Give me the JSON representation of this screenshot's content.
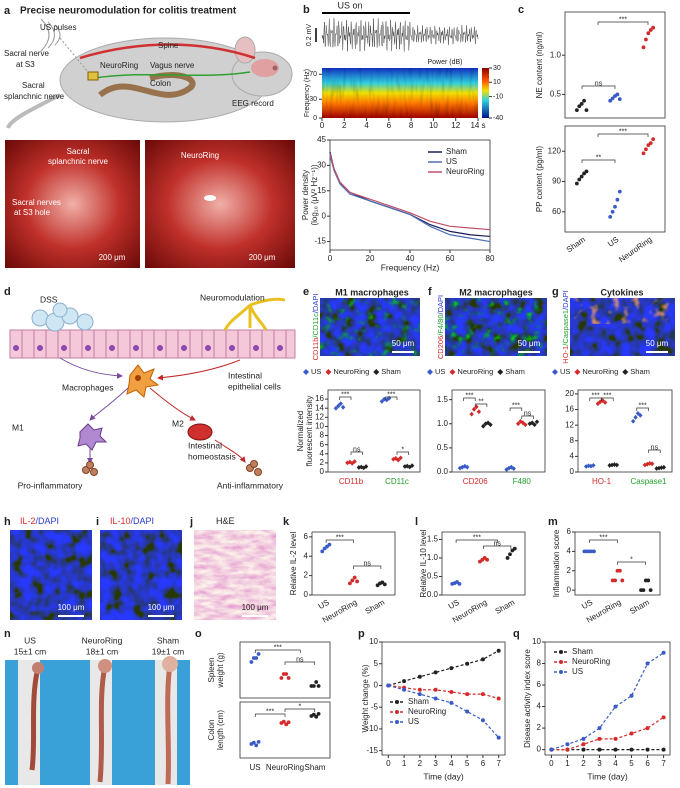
{
  "figure": {
    "panel_labels": [
      "a",
      "b",
      "c",
      "d",
      "e",
      "f",
      "g",
      "h",
      "i",
      "j",
      "k",
      "l",
      "m",
      "n",
      "o",
      "p",
      "q"
    ],
    "a": {
      "title": "Precise neuromodulation for colitis treatment",
      "labels": [
        "US pulses",
        "Spine",
        "EEG record",
        "Sacral nerve",
        "at S3",
        "NeuroRing",
        "Vagus nerve",
        "Sacral",
        "splanchnic nerve",
        "Colon"
      ],
      "photo_labels": [
        "Sacral",
        "splanchnic nerve",
        "Sacral nerves",
        "at S3 hole",
        "200 μm",
        "NeuroRing",
        "200 μm"
      ]
    },
    "b": {
      "stim_label": "US on",
      "amplitude_scale": "0.2 mV",
      "colorbar_title": "Power (dB)",
      "spectrogram": {
        "ylabel": "Frequency (Hz)",
        "xlim": [
          0,
          14
        ],
        "ylim": [
          0,
          80
        ],
        "xticks": [
          0,
          2,
          4,
          6,
          8,
          10,
          12,
          {
            "value": 14,
            "label": "14 s"
          }
        ],
        "yticks": [
          0,
          30,
          70
        ],
        "colorbar_lim": [
          -40,
          30
        ],
        "colorbar_ticks": [
          30,
          10,
          -10,
          -40
        ]
      }
    },
    "d": {
      "labels": [
        "DSS",
        "Neuromodulation",
        "Macrophages",
        "Intestinal",
        "epithelial cells",
        "M1",
        "M2",
        "Intestinal",
        "homeostasis",
        "Pro-inflammatory",
        "Anti-inflammatory"
      ]
    },
    "e": {
      "title": "M1 macrophages",
      "stain": [
        "CD11b",
        "/CD11c",
        "/DAPI"
      ],
      "stain_colors": [
        "#d42a2a",
        "#22a02a",
        "#2a3ad0"
      ],
      "scale_bar": "50 μm"
    },
    "f": {
      "title": "M2 macrophages",
      "stain": [
        "CD206",
        "/F4/80",
        "/DAPI"
      ],
      "stain_colors": [
        "#d42a2a",
        "#22a02a",
        "#2a3ad0"
      ],
      "scale_bar": "50 μm"
    },
    "g": {
      "title": "Cytokines",
      "stain": [
        "HO-1",
        "/Caspase1",
        "/DAPI"
      ],
      "stain_colors": [
        "#d42a2a",
        "#22a02a",
        "#2a3ad0"
      ],
      "scale_bar": "50 μm"
    },
    "h": {
      "stain": [
        "IL-2",
        "/DAPI"
      ],
      "stain_colors": [
        "#d42a2a",
        "#2a3ad0"
      ],
      "scale_bar": "100 μm"
    },
    "i": {
      "stain": [
        "IL-10",
        "/DAPI"
      ],
      "stain_colors": [
        "#d42a2a",
        "#2a3ad0"
      ],
      "scale_bar": "100 μm"
    },
    "j": {
      "stain": [
        "H&E"
      ],
      "stain_colors": [
        "#222222"
      ],
      "scale_bar": "100 μm"
    },
    "n": {
      "groups": [
        {
          "name": "US",
          "length": "15±1 cm"
        },
        {
          "name": "NeuroRing",
          "length": "18±1 cm"
        },
        {
          "name": "Sham",
          "length": "19±1 cm"
        }
      ]
    }
  },
  "chart_data": [
    {
      "type": "line",
      "line_style": "solid",
      "x": [
        0,
        2,
        5,
        10,
        20,
        30,
        40,
        50,
        60,
        70,
        80
      ],
      "xlim": [
        0,
        80
      ],
      "xticks": [
        0,
        20,
        40,
        60,
        80
      ],
      "ylim": [
        -20,
        45
      ],
      "yticks": [
        -15,
        0,
        15,
        30,
        45
      ],
      "xlabel": "Frequency (Hz)",
      "ylabel": [
        "Power density",
        "(log₁₀ (μV² Hz⁻¹))"
      ],
      "series": [
        {
          "name": "Sham",
          "color": "#1c1c5a",
          "values": [
            38,
            28,
            20,
            14,
            9,
            5,
            1,
            -5,
            -9,
            -11,
            -12
          ]
        },
        {
          "name": "US",
          "color": "#4a6fb5",
          "values": [
            36,
            27,
            19,
            13,
            9,
            5,
            1,
            -6,
            -11,
            -13,
            -15
          ]
        },
        {
          "name": "NeuroRing",
          "color": "#c0506a",
          "values": [
            37,
            28,
            20,
            14,
            10,
            6,
            2,
            -3,
            -6,
            -7,
            -8
          ]
        }
      ]
    },
    {
      "type": "dot",
      "ylabel": "NE content (ng/ml)",
      "ylim": [
        0.2,
        1.55
      ],
      "yticks": [
        0.5,
        {
          "value": 1,
          "label": "1.0"
        }
      ],
      "colors": [
        "#222222",
        "#3a5bc7",
        "#d42a2a"
      ],
      "values": [
        [
          0.3,
          0.35,
          0.38,
          0.42,
          0.3
        ],
        [
          0.42,
          0.45,
          0.48,
          0.5,
          0.44
        ],
        [
          1.1,
          1.2,
          1.28,
          1.32,
          1.35
        ]
      ],
      "annotations": [
        "ns",
        "***"
      ]
    },
    {
      "type": "dot",
      "ylabel": "PP content (pg/ml)",
      "ylim": [
        40,
        145
      ],
      "yticks": [
        60,
        90,
        120
      ],
      "categories": [
        "Sham",
        "US",
        "NeuroRing"
      ],
      "colors": [
        "#222222",
        "#3a5bc7",
        "#d42a2a"
      ],
      "values": [
        [
          88,
          92,
          95,
          98,
          100
        ],
        [
          55,
          60,
          65,
          72,
          80
        ],
        [
          118,
          122,
          126,
          128,
          132
        ]
      ],
      "annotations": [
        "**",
        "***"
      ]
    },
    {
      "type": "dot",
      "ylabel": [
        "Normalized",
        "fluorescent intensity"
      ],
      "ylim": [
        0,
        18
      ],
      "yticks": [
        0,
        2,
        4,
        6,
        8,
        10,
        12,
        14,
        16
      ],
      "categories": [
        "CD11b",
        "CD11c"
      ],
      "category_colors": [
        "#d42a2a",
        "#22a02a"
      ],
      "series": [
        {
          "name": "US",
          "color": "#3a5bc7",
          "values": [
            [
              14,
              14.5,
              15,
              14.2
            ],
            [
              15.5,
              16,
              15.8,
              16.2
            ]
          ]
        },
        {
          "name": "NeuroRing",
          "color": "#d42a2a",
          "values": [
            [
              2,
              2.2,
              1.9,
              2.3
            ],
            [
              2.8,
              3,
              2.6,
              3.1
            ]
          ]
        },
        {
          "name": "Sham",
          "color": "#222222",
          "values": [
            [
              1,
              1.1,
              0.9,
              1.2
            ],
            [
              1.2,
              1.3,
              1.1,
              1.4
            ]
          ]
        }
      ],
      "annotations": [
        "***",
        "ns",
        "***",
        "*"
      ]
    },
    {
      "type": "dot",
      "ylim": [
        0,
        1.7
      ],
      "yticks": [
        {
          "value": 0,
          "label": "0.0"
        },
        0.5,
        {
          "value": 1,
          "label": "1.0"
        },
        1.5
      ],
      "categories": [
        "CD206",
        "F480"
      ],
      "category_colors": [
        "#d42a2a",
        "#22a02a"
      ],
      "series": [
        {
          "name": "US",
          "color": "#3a5bc7",
          "values": [
            [
              0.08,
              0.1,
              0.12,
              0.1
            ],
            [
              0.05,
              0.08,
              0.1,
              0.07
            ]
          ]
        },
        {
          "name": "NeuroRing",
          "color": "#d42a2a",
          "values": [
            [
              1.2,
              1.3,
              1.35,
              1.25
            ],
            [
              1.0,
              1.05,
              1.02,
              0.98
            ]
          ]
        },
        {
          "name": "Sham",
          "color": "#222222",
          "values": [
            [
              0.95,
              1.0,
              1.02,
              0.98
            ],
            [
              1.0,
              1.02,
              0.98,
              1.04
            ]
          ]
        }
      ],
      "annotations": [
        "***",
        "**",
        "***",
        "ns"
      ]
    },
    {
      "type": "dot",
      "ylim": [
        0,
        21
      ],
      "yticks": [
        0,
        4,
        8,
        12,
        16,
        20
      ],
      "categories": [
        "HO-1",
        "Caspase1"
      ],
      "category_colors": [
        "#d42a2a",
        "#22a02a"
      ],
      "series": [
        {
          "name": "US",
          "color": "#3a5bc7",
          "values": [
            [
              1.4,
              1.6,
              1.5,
              1.7
            ],
            [
              13,
              14,
              15,
              14.5
            ]
          ]
        },
        {
          "name": "NeuroRing",
          "color": "#d42a2a",
          "values": [
            [
              17.5,
              18,
              18.3,
              17.8
            ],
            [
              1.8,
              2,
              2.2,
              2.1
            ]
          ]
        },
        {
          "name": "Sham",
          "color": "#222222",
          "values": [
            [
              1.7,
              1.8,
              1.9,
              1.8
            ],
            [
              0.9,
              1,
              1.1,
              1.2
            ]
          ]
        }
      ],
      "annotations": [
        "***",
        "***",
        "***",
        "ns"
      ]
    },
    {
      "type": "dot",
      "ylabel": "Relative IL-2 level",
      "ylim": [
        0,
        6.5
      ],
      "yticks": [
        0,
        2,
        4,
        6
      ],
      "categories": [
        "US",
        "NeuroRing",
        "Sham"
      ],
      "colors": [
        "#3a5bc7",
        "#d42a2a",
        "#222222"
      ],
      "values": [
        [
          4.5,
          4.8,
          5.0,
          5.2
        ],
        [
          1.2,
          1.5,
          1.8,
          1.4
        ],
        [
          1.0,
          1.2,
          1.3,
          1.1
        ]
      ],
      "annotations": [
        "***",
        "ns"
      ]
    },
    {
      "type": "dot",
      "ylabel": "Relative IL-10 level",
      "ylim": [
        0,
        1.7
      ],
      "yticks": [
        {
          "value": 0,
          "label": "0.0"
        },
        0.5,
        {
          "value": 1,
          "label": "1.0"
        },
        1.5
      ],
      "categories": [
        "US",
        "NeuroRing",
        "Sham"
      ],
      "colors": [
        "#3a5bc7",
        "#d42a2a",
        "#222222"
      ],
      "values": [
        [
          0.3,
          0.32,
          0.35,
          0.3
        ],
        [
          0.9,
          0.95,
          1.0,
          0.95
        ],
        [
          1.0,
          1.1,
          1.2,
          1.25
        ]
      ],
      "annotations": [
        "***",
        "ns"
      ]
    },
    {
      "type": "dot",
      "ylabel": "Inflammation score",
      "ylim": [
        -0.5,
        6
      ],
      "yticks": [
        0,
        2,
        4,
        6
      ],
      "categories": [
        "US",
        "NeuroRing",
        "Sham"
      ],
      "colors": [
        "#3a5bc7",
        "#d42a2a",
        "#222222"
      ],
      "values": [
        [
          4,
          4,
          4,
          4,
          4
        ],
        [
          1,
          1,
          2,
          2,
          1
        ],
        [
          0,
          0,
          1,
          1,
          0
        ]
      ],
      "annotations": [
        "***",
        "*"
      ]
    },
    {
      "type": "dot",
      "ylabel": [
        "Spleen",
        "weight (g)"
      ],
      "ylim": [
        0.1,
        0.24
      ],
      "yticks": [],
      "colors": [
        "#3a5bc7",
        "#d42a2a",
        "#222222"
      ],
      "values": [
        [
          0.19,
          0.2,
          0.2,
          0.21
        ],
        [
          0.15,
          0.16,
          0.16,
          0.15
        ],
        [
          0.13,
          0.13,
          0.14,
          0.13
        ]
      ],
      "annotations": [
        "***",
        "ns"
      ]
    },
    {
      "type": "dot",
      "ylabel": [
        "Colon",
        "length (cm)"
      ],
      "ylim": [
        13,
        21
      ],
      "yticks": [],
      "categories": [
        "US",
        "NeuroRing",
        "Sham"
      ],
      "colors": [
        "#3a5bc7",
        "#d42a2a",
        "#222222"
      ],
      "values": [
        [
          15,
          15.2,
          14.8,
          15.3
        ],
        [
          18,
          18.2,
          17.8,
          18.1
        ],
        [
          19,
          19.2,
          18.9,
          19.3
        ]
      ],
      "annotations": [
        "***",
        "*"
      ]
    },
    {
      "type": "line",
      "line_style": "dashed",
      "markers": true,
      "x": [
        0,
        1,
        2,
        3,
        4,
        5,
        6,
        7
      ],
      "xlim": [
        -0.4,
        7.4
      ],
      "xticks": [
        0,
        1,
        2,
        3,
        4,
        5,
        6,
        7
      ],
      "ylim": [
        -16,
        10
      ],
      "yticks": [
        -15,
        -10,
        -5,
        0,
        5,
        10
      ],
      "xlabel": "Time (day)",
      "ylabel": "Weight change (%)",
      "series": [
        {
          "name": "Sham",
          "color": "#222222",
          "values": [
            0,
            1,
            2,
            3,
            4,
            5,
            6,
            8
          ]
        },
        {
          "name": "NeuroRing",
          "color": "#d42a2a",
          "values": [
            0,
            -0.5,
            -1,
            -1,
            -1.5,
            -2,
            -2,
            -3
          ]
        },
        {
          "name": "US",
          "color": "#3a5bc7",
          "values": [
            0,
            -1,
            -2,
            -3,
            -4,
            -6,
            -8,
            -12
          ]
        }
      ]
    },
    {
      "type": "line",
      "line_style": "dashed",
      "markers": true,
      "x": [
        0,
        1,
        2,
        3,
        4,
        5,
        6,
        7
      ],
      "xlim": [
        -0.4,
        7.4
      ],
      "xticks": [
        0,
        1,
        2,
        3,
        4,
        5,
        6,
        7
      ],
      "ylim": [
        -0.5,
        10
      ],
      "yticks": [
        0,
        2,
        4,
        6,
        8,
        10
      ],
      "xlabel": "Time (day)",
      "ylabel": "Disease activity index score",
      "series": [
        {
          "name": "Sham",
          "color": "#222222",
          "values": [
            0,
            0,
            0,
            0,
            0,
            0,
            0,
            0
          ]
        },
        {
          "name": "NeuroRing",
          "color": "#d42a2a",
          "values": [
            0,
            0,
            0.5,
            1,
            1,
            1.5,
            2,
            3
          ]
        },
        {
          "name": "US",
          "color": "#3a5bc7",
          "values": [
            0,
            0.5,
            1,
            2,
            4,
            5,
            8,
            9
          ]
        }
      ]
    }
  ]
}
